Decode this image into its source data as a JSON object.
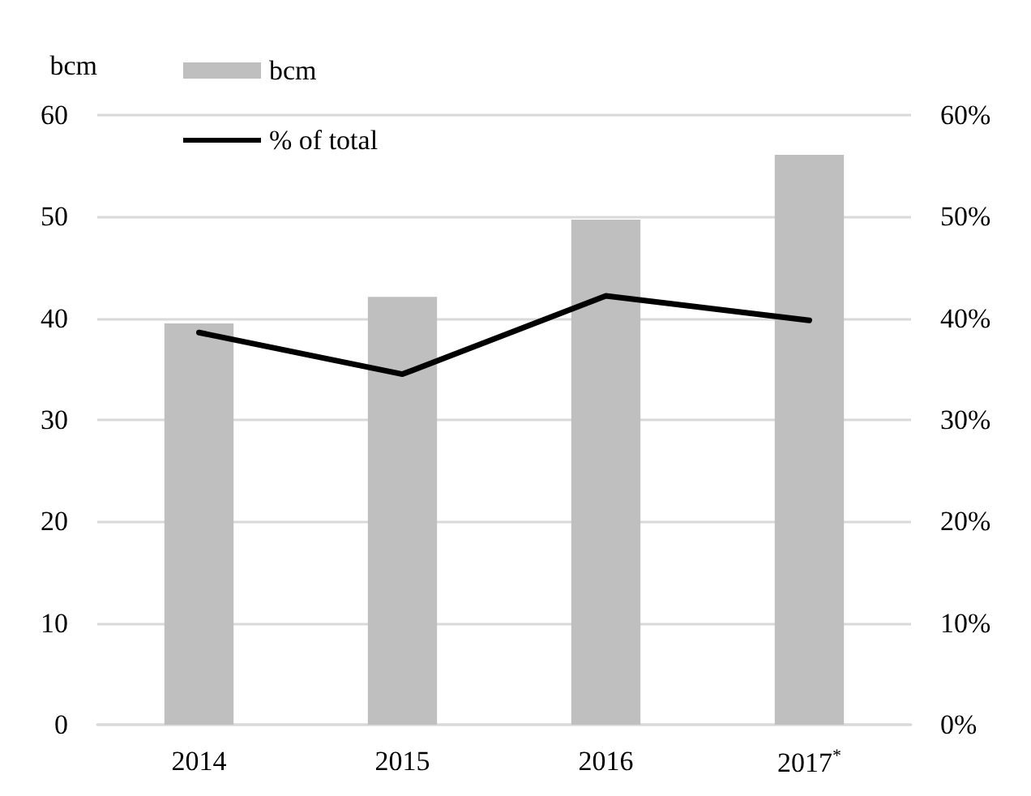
{
  "chart_data": {
    "type": "bar",
    "categories": [
      "2014",
      "2015",
      "2016",
      "2017$^{*}$"
    ],
    "ylabel": "bcm",
    "series": [
      {
        "name": "bcm",
        "color": "#bfbfbf",
        "values": [
          39.5,
          42.1,
          49.7,
          56.1
        ]
      },
      {
        "name": "% of total",
        "type": "line",
        "axis": "y2",
        "color": "#000000",
        "values": [
          38.6,
          34.5,
          42.2,
          39.8
        ]
      }
    ],
    "ylim": [
      0,
      60
    ],
    "yticks": [
      0,
      10,
      20,
      30,
      40,
      50,
      60
    ],
    "y2lim": [
      0,
      60
    ],
    "y2ticks": [
      {
        "value": 0,
        "label": "0%"
      },
      {
        "value": 10,
        "label": "10%"
      },
      {
        "value": 20,
        "label": "20%"
      },
      {
        "value": 30,
        "label": "30%"
      },
      {
        "value": 40,
        "label": "40%"
      },
      {
        "value": 50,
        "label": "50%"
      },
      {
        "value": 60,
        "label": "60%"
      }
    ],
    "grid": "y",
    "legend": "top left",
    "marker": "none",
    "line_style": "solid"
  }
}
